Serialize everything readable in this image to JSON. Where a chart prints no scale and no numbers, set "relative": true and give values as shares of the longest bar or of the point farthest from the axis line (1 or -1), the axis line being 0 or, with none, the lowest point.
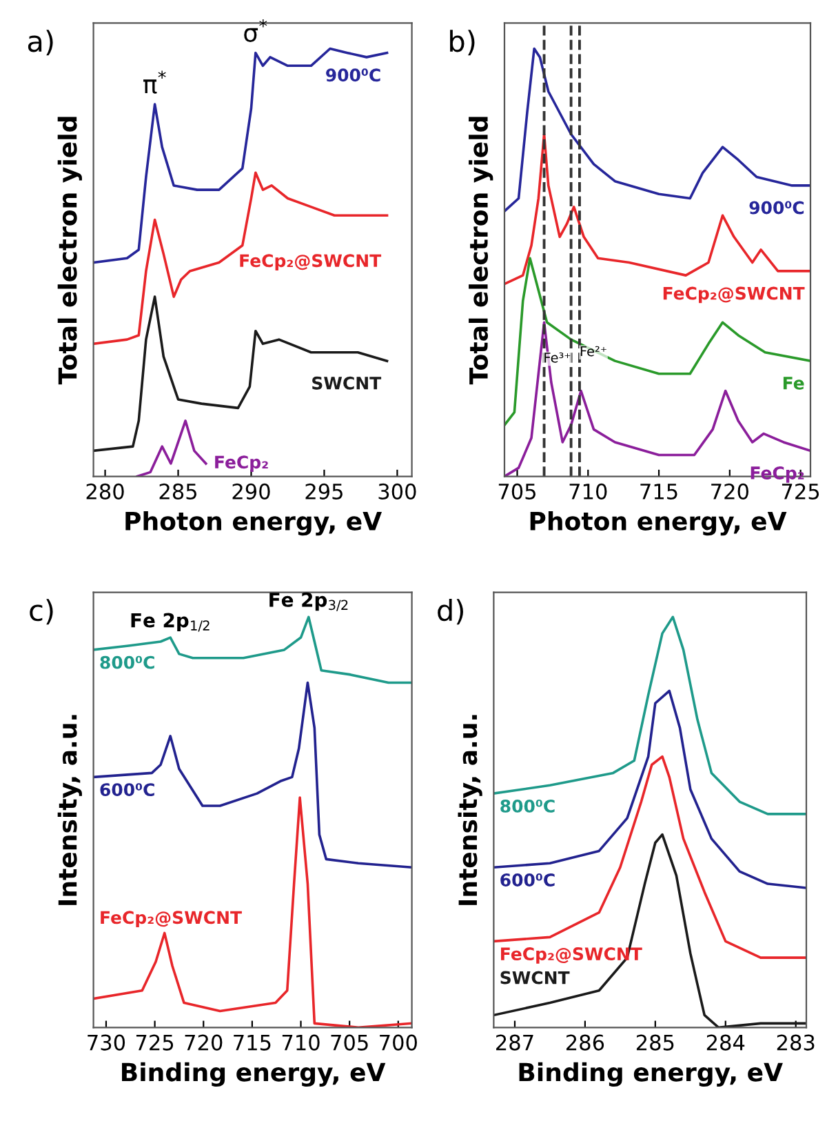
{
  "chart_data": [
    {
      "type": "line",
      "title": "a)",
      "xlabel": "Photon energy, eV",
      "ylabel": "Total electron yield",
      "relative": true,
      "legend": false,
      "tick_labels": "x",
      "xlim": [
        279.2,
        301.0
      ],
      "xticks": [
        280,
        285,
        290,
        295,
        300
      ],
      "annotations": [
        {
          "text": "π$^{*}$",
          "x": 283.4,
          "y": 0.87
        },
        {
          "text": "σ$^{*}$",
          "x": 290.3,
          "y": 0.99
        }
      ],
      "series": [
        {
          "name": "900⁰C",
          "color": "#26269a",
          "x": [
            279.2,
            281.5,
            282.3,
            282.8,
            283.4,
            283.9,
            284.7,
            286.3,
            287.8,
            289.4,
            290.0,
            290.3,
            290.8,
            291.3,
            292.5,
            294.1,
            295.4,
            296.6,
            297.9,
            299.3
          ],
          "values": [
            0.5,
            0.51,
            0.53,
            0.7,
            0.87,
            0.77,
            0.68,
            0.67,
            0.67,
            0.72,
            0.86,
            0.99,
            0.96,
            0.98,
            0.96,
            0.96,
            1.0,
            0.99,
            0.98,
            0.99
          ]
        },
        {
          "name": "FeCp₂@SWCNT",
          "color": "#e8262a",
          "x": [
            279.2,
            281.5,
            282.3,
            282.8,
            283.4,
            284.0,
            284.7,
            285.2,
            285.8,
            287.8,
            289.4,
            290.0,
            290.3,
            290.8,
            291.4,
            292.5,
            294.1,
            295.7,
            299.3
          ],
          "values": [
            0.31,
            0.32,
            0.33,
            0.48,
            0.6,
            0.52,
            0.42,
            0.46,
            0.48,
            0.5,
            0.54,
            0.65,
            0.71,
            0.67,
            0.68,
            0.65,
            0.63,
            0.61,
            0.61
          ]
        },
        {
          "name": "SWCNT",
          "color": "#1a1a1a",
          "x": [
            279.2,
            281.9,
            282.3,
            282.8,
            283.4,
            284.0,
            285.0,
            286.6,
            289.1,
            289.9,
            290.3,
            290.8,
            291.9,
            294.1,
            297.3,
            299.3
          ],
          "values": [
            0.06,
            0.07,
            0.13,
            0.32,
            0.42,
            0.28,
            0.18,
            0.17,
            0.16,
            0.21,
            0.34,
            0.31,
            0.32,
            0.29,
            0.29,
            0.27
          ]
        },
        {
          "name": "FeCp₂",
          "color": "#8b1e9b",
          "x": [
            282.2,
            283.1,
            283.9,
            284.5,
            285.5,
            286.1,
            286.9
          ],
          "values": [
            0.0,
            0.01,
            0.07,
            0.03,
            0.13,
            0.06,
            0.03
          ]
        }
      ]
    },
    {
      "type": "line",
      "title": "b)",
      "xlabel": "Photon energy, eV",
      "ylabel": "Total electron yield",
      "relative": true,
      "legend": false,
      "tick_labels": "x",
      "xlim": [
        704.1,
        725.7
      ],
      "xticks": [
        705,
        710,
        715,
        720,
        725
      ],
      "ref_lines": [
        {
          "axis": "x",
          "value": 706.9,
          "color": "#333333",
          "line_style": "dashed"
        },
        {
          "axis": "x",
          "value": 708.8,
          "label": "Fe³⁺",
          "color": "#333333",
          "line_style": "dashed"
        },
        {
          "axis": "x",
          "value": 709.4,
          "label": "Fe²⁺",
          "color": "#333333",
          "line_style": "dashed"
        }
      ],
      "series": [
        {
          "name": "900⁰C",
          "color": "#26269a",
          "x": [
            704.1,
            705.1,
            705.7,
            706.2,
            706.6,
            707.2,
            708.8,
            710.4,
            711.9,
            715.0,
            717.2,
            718.1,
            719.5,
            720.6,
            721.9,
            724.4,
            725.7
          ],
          "values": [
            0.62,
            0.65,
            0.85,
            1.0,
            0.98,
            0.9,
            0.8,
            0.73,
            0.69,
            0.66,
            0.65,
            0.71,
            0.77,
            0.74,
            0.7,
            0.68,
            0.68
          ]
        },
        {
          "name": "FeCp₂@SWCNT",
          "color": "#e8262a",
          "x": [
            704.1,
            705.4,
            706.0,
            706.5,
            706.9,
            707.2,
            708.0,
            708.5,
            709.0,
            709.7,
            710.7,
            712.9,
            716.9,
            718.5,
            719.5,
            720.3,
            721.6,
            722.2,
            723.4,
            725.7
          ],
          "values": [
            0.45,
            0.47,
            0.54,
            0.65,
            0.8,
            0.68,
            0.56,
            0.59,
            0.63,
            0.56,
            0.51,
            0.5,
            0.47,
            0.5,
            0.61,
            0.56,
            0.5,
            0.53,
            0.48,
            0.48
          ]
        },
        {
          "name": "Fe",
          "color": "#2a9a2a",
          "x": [
            704.1,
            704.8,
            705.4,
            705.9,
            706.3,
            707.1,
            708.8,
            711.9,
            715.0,
            717.2,
            718.5,
            719.5,
            720.6,
            722.5,
            725.7
          ],
          "values": [
            0.12,
            0.15,
            0.41,
            0.51,
            0.46,
            0.36,
            0.32,
            0.27,
            0.24,
            0.24,
            0.31,
            0.36,
            0.33,
            0.29,
            0.27
          ]
        },
        {
          "name": "FeCp₂",
          "color": "#8b1e9b",
          "x": [
            704.1,
            705.1,
            706.0,
            706.5,
            706.9,
            707.4,
            708.2,
            708.8,
            709.5,
            710.4,
            711.9,
            715.0,
            717.5,
            718.8,
            719.7,
            720.6,
            721.6,
            722.4,
            723.8,
            725.7
          ],
          "values": [
            0.0,
            0.02,
            0.09,
            0.24,
            0.36,
            0.22,
            0.08,
            0.12,
            0.2,
            0.11,
            0.08,
            0.05,
            0.05,
            0.11,
            0.2,
            0.13,
            0.08,
            0.1,
            0.08,
            0.06
          ]
        }
      ]
    },
    {
      "type": "line",
      "title": "c)",
      "xlabel": "Binding energy, eV",
      "ylabel": "Intensity, a.u.",
      "relative": true,
      "legend": false,
      "tick_labels": "x",
      "xlim": [
        731.3,
        698.6
      ],
      "xticks": [
        730,
        725,
        720,
        715,
        710,
        705,
        700
      ],
      "annotations": [
        {
          "text": "Fe 2p$_{1/2}$",
          "x": 723.4,
          "y": 0.95
        },
        {
          "text": "Fe 2p$_{3/2}$",
          "x": 709.2,
          "y": 1.0
        }
      ],
      "series": [
        {
          "name": "800⁰C",
          "color": "#1e9a8a",
          "x": [
            731.3,
            727.7,
            724.4,
            723.4,
            722.5,
            721.1,
            715.9,
            711.7,
            710.0,
            709.2,
            708.6,
            707.9,
            705.0,
            701.0,
            698.6
          ],
          "values": [
            0.92,
            0.93,
            0.94,
            0.95,
            0.91,
            0.9,
            0.9,
            0.92,
            0.95,
            1.0,
            0.94,
            0.87,
            0.86,
            0.84,
            0.84
          ]
        },
        {
          "name": "600⁰C",
          "color": "#22228f",
          "x": [
            731.3,
            725.3,
            724.4,
            723.4,
            722.5,
            720.1,
            718.3,
            714.5,
            712.1,
            710.9,
            710.2,
            709.3,
            708.6,
            708.1,
            707.4,
            704.1,
            698.6
          ],
          "values": [
            0.61,
            0.62,
            0.64,
            0.71,
            0.63,
            0.54,
            0.54,
            0.57,
            0.6,
            0.61,
            0.68,
            0.84,
            0.73,
            0.47,
            0.41,
            0.4,
            0.39
          ]
        },
        {
          "name": "FeCp₂@SWCNT",
          "color": "#e8262a",
          "x": [
            731.3,
            726.3,
            724.9,
            724.0,
            723.2,
            722.0,
            718.3,
            712.6,
            711.4,
            710.7,
            710.1,
            709.3,
            708.6,
            704.1,
            698.6
          ],
          "values": [
            0.07,
            0.09,
            0.16,
            0.23,
            0.15,
            0.06,
            0.04,
            0.06,
            0.09,
            0.35,
            0.56,
            0.35,
            0.01,
            0.0,
            0.01
          ]
        }
      ]
    },
    {
      "type": "line",
      "title": "d)",
      "xlabel": "Binding energy, eV",
      "ylabel": "Intensity, a.u.",
      "relative": true,
      "legend": false,
      "tick_labels": "x",
      "xlim": [
        287.3,
        282.85
      ],
      "xticks": [
        287,
        286,
        285,
        284,
        283
      ],
      "series": [
        {
          "name": "800⁰C",
          "color": "#1e9a8a",
          "x": [
            287.3,
            286.5,
            285.6,
            285.3,
            285.1,
            284.9,
            284.75,
            284.6,
            284.4,
            284.2,
            283.8,
            283.4,
            282.85
          ],
          "values": [
            0.57,
            0.59,
            0.62,
            0.65,
            0.81,
            0.96,
            1.0,
            0.92,
            0.75,
            0.62,
            0.55,
            0.52,
            0.52
          ]
        },
        {
          "name": "600⁰C",
          "color": "#22228f",
          "x": [
            287.3,
            286.5,
            285.8,
            285.4,
            285.1,
            285.0,
            284.8,
            284.65,
            284.5,
            284.2,
            283.8,
            283.4,
            282.85
          ],
          "values": [
            0.39,
            0.4,
            0.43,
            0.51,
            0.66,
            0.79,
            0.82,
            0.73,
            0.58,
            0.46,
            0.38,
            0.35,
            0.34
          ]
        },
        {
          "name": "FeCp₂@SWCNT",
          "color": "#e8262a",
          "x": [
            287.3,
            286.5,
            285.8,
            285.5,
            285.2,
            285.05,
            284.9,
            284.8,
            284.6,
            284.3,
            284.0,
            283.5,
            282.85
          ],
          "values": [
            0.21,
            0.22,
            0.28,
            0.39,
            0.55,
            0.64,
            0.66,
            0.61,
            0.46,
            0.33,
            0.21,
            0.17,
            0.17
          ]
        },
        {
          "name": "SWCNT",
          "color": "#1a1a1a",
          "x": [
            287.3,
            286.5,
            285.8,
            285.4,
            285.15,
            285.0,
            284.9,
            284.7,
            284.5,
            284.3,
            284.1,
            283.5,
            282.85
          ],
          "values": [
            0.03,
            0.06,
            0.09,
            0.17,
            0.35,
            0.45,
            0.47,
            0.37,
            0.18,
            0.03,
            0.0,
            0.01,
            0.01
          ]
        }
      ]
    }
  ]
}
